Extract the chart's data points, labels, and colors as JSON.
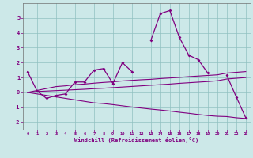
{
  "x": [
    0,
    1,
    2,
    3,
    4,
    5,
    6,
    7,
    8,
    9,
    10,
    11,
    12,
    13,
    14,
    15,
    16,
    17,
    18,
    19,
    20,
    21,
    22,
    23
  ],
  "line_main": [
    1.4,
    0.1,
    -0.4,
    -0.2,
    -0.1,
    0.7,
    0.7,
    1.5,
    1.6,
    0.6,
    2.0,
    1.4,
    null,
    3.5,
    5.3,
    5.5,
    3.7,
    2.5,
    2.2,
    1.3,
    null,
    1.15,
    -0.3,
    -1.7
  ],
  "line_upper": [
    0.0,
    0.13,
    0.26,
    0.39,
    0.44,
    0.52,
    0.56,
    0.62,
    0.67,
    0.71,
    0.77,
    0.81,
    0.85,
    0.88,
    0.93,
    0.97,
    1.01,
    1.06,
    1.1,
    1.14,
    1.18,
    1.3,
    1.35,
    1.4
  ],
  "line_mid": [
    0.0,
    0.06,
    0.09,
    0.12,
    0.15,
    0.18,
    0.21,
    0.25,
    0.28,
    0.32,
    0.36,
    0.4,
    0.44,
    0.48,
    0.52,
    0.56,
    0.61,
    0.65,
    0.69,
    0.73,
    0.78,
    0.9,
    0.95,
    1.0
  ],
  "line_lower": [
    0.0,
    -0.1,
    -0.2,
    -0.3,
    -0.4,
    -0.5,
    -0.6,
    -0.7,
    -0.75,
    -0.82,
    -0.9,
    -0.98,
    -1.05,
    -1.12,
    -1.18,
    -1.25,
    -1.33,
    -1.4,
    -1.48,
    -1.55,
    -1.6,
    -1.62,
    -1.7,
    -1.75
  ],
  "color": "#800080",
  "background": "#cce8e8",
  "xlabel": "Windchill (Refroidissement éolien,°C)",
  "xlim": [
    -0.5,
    23.5
  ],
  "ylim": [
    -2.5,
    6.0
  ],
  "yticks": [
    -2,
    -1,
    0,
    1,
    2,
    3,
    4,
    5
  ],
  "xticks": [
    0,
    1,
    2,
    3,
    4,
    5,
    6,
    7,
    8,
    9,
    10,
    11,
    12,
    13,
    14,
    15,
    16,
    17,
    18,
    19,
    20,
    21,
    22,
    23
  ]
}
